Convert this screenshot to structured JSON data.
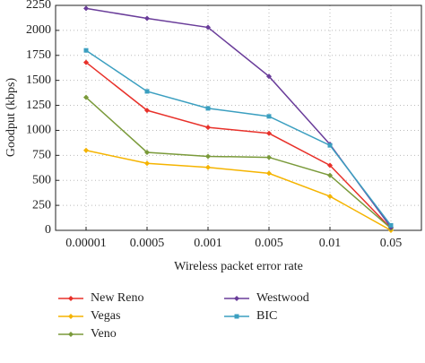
{
  "chart_data": {
    "type": "line",
    "x_label": "Wireless packet error rate",
    "y_label": "Goodput (kbps)",
    "categories": [
      "0.00001",
      "0.0005",
      "0.001",
      "0.005",
      "0.01",
      "0.05"
    ],
    "series": [
      {
        "name": "New Reno",
        "color": "#e8312a",
        "values": [
          1680,
          1200,
          1030,
          970,
          650,
          20
        ]
      },
      {
        "name": "Vegas",
        "color": "#f5b400",
        "values": [
          800,
          670,
          630,
          570,
          340,
          0
        ]
      },
      {
        "name": "Veno",
        "color": "#7a9a3a",
        "values": [
          1330,
          780,
          740,
          730,
          550,
          20
        ]
      },
      {
        "name": "Westwood",
        "color": "#6a3d9a",
        "values": [
          2220,
          2120,
          2030,
          1540,
          860,
          30
        ]
      },
      {
        "name": "BIC",
        "color": "#3b9fc0",
        "values": [
          1800,
          1390,
          1220,
          1140,
          850,
          50
        ]
      }
    ],
    "ylim": [
      0,
      2250
    ],
    "yticks": [
      0,
      250,
      500,
      750,
      1000,
      1250,
      1500,
      1750,
      2000,
      2250
    ],
    "grid": true
  }
}
